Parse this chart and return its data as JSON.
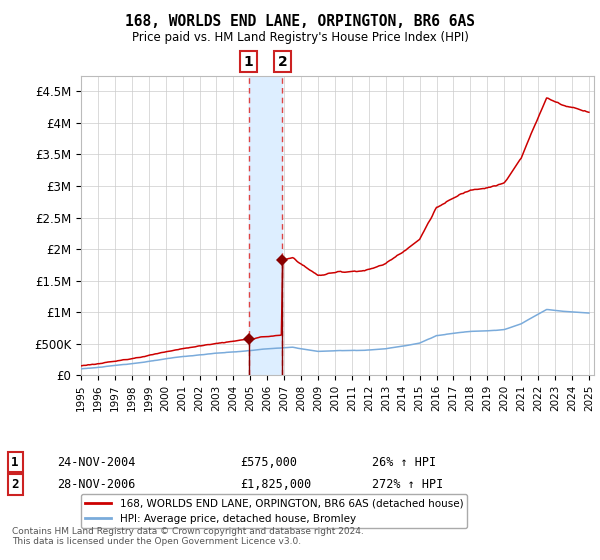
{
  "title": "168, WORLDS END LANE, ORPINGTON, BR6 6AS",
  "subtitle": "Price paid vs. HM Land Registry's House Price Index (HPI)",
  "background_color": "#ffffff",
  "grid_color": "#cccccc",
  "plot_bg_color": "#ffffff",
  "ylim": [
    0,
    4750000
  ],
  "yticks": [
    0,
    500000,
    1000000,
    1500000,
    2000000,
    2500000,
    3000000,
    3500000,
    4000000,
    4500000
  ],
  "ytick_labels": [
    "£0",
    "£500K",
    "£1M",
    "£1.5M",
    "£2M",
    "£2.5M",
    "£3M",
    "£3.5M",
    "£4M",
    "£4.5M"
  ],
  "sale1_date": 2004.9,
  "sale1_price": 575000,
  "sale2_date": 2006.9,
  "sale2_price": 1825000,
  "shade_color": "#ddeeff",
  "red_line_color": "#cc0000",
  "blue_line_color": "#7aabdb",
  "sale_marker_color": "#880000",
  "dashed_color": "#dd4444",
  "legend_entry1": "168, WORLDS END LANE, ORPINGTON, BR6 6AS (detached house)",
  "legend_entry2": "HPI: Average price, detached house, Bromley",
  "footer_text": "Contains HM Land Registry data © Crown copyright and database right 2024.\nThis data is licensed under the Open Government Licence v3.0."
}
